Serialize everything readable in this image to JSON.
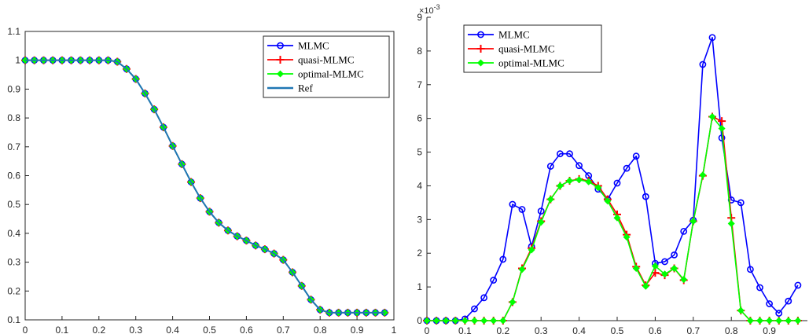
{
  "chart_data": [
    {
      "type": "line",
      "xlim": [
        0,
        1
      ],
      "ylim": [
        0.1,
        1.1
      ],
      "xticks": [
        "0",
        "0.1",
        "0.2",
        "0.3",
        "0.4",
        "0.5",
        "0.6",
        "0.7",
        "0.8",
        "0.9",
        "1"
      ],
      "yticks": [
        "0.1",
        "0.2",
        "0.3",
        "0.4",
        "0.5",
        "0.6",
        "0.7",
        "0.8",
        "0.9",
        "1",
        "1.1"
      ],
      "legend_position": "top-right",
      "grid": false,
      "x": [
        0,
        0.025,
        0.05,
        0.075,
        0.1,
        0.125,
        0.15,
        0.175,
        0.2,
        0.225,
        0.25,
        0.275,
        0.3,
        0.325,
        0.35,
        0.375,
        0.4,
        0.425,
        0.45,
        0.475,
        0.5,
        0.525,
        0.55,
        0.575,
        0.6,
        0.625,
        0.65,
        0.675,
        0.7,
        0.725,
        0.75,
        0.775,
        0.8,
        0.825,
        0.85,
        0.875,
        0.9,
        0.925,
        0.95,
        0.975
      ],
      "series": [
        {
          "name": "MLMC",
          "color": "#0000ff",
          "marker": "circle",
          "values": [
            1,
            1,
            1,
            1,
            1,
            1,
            1,
            1,
            1,
            1,
            0.995,
            0.97,
            0.935,
            0.885,
            0.83,
            0.768,
            0.703,
            0.64,
            0.578,
            0.522,
            0.475,
            0.437,
            0.41,
            0.39,
            0.375,
            0.358,
            0.345,
            0.33,
            0.308,
            0.265,
            0.218,
            0.17,
            0.135,
            0.125,
            0.125,
            0.125,
            0.125,
            0.125,
            0.125,
            0.125
          ]
        },
        {
          "name": "quasi-MLMC",
          "color": "#ff0000",
          "marker": "plus",
          "values": [
            1,
            1,
            1,
            1,
            1,
            1,
            1,
            1,
            1,
            1,
            0.995,
            0.97,
            0.935,
            0.885,
            0.83,
            0.768,
            0.703,
            0.64,
            0.578,
            0.522,
            0.475,
            0.437,
            0.41,
            0.39,
            0.375,
            0.358,
            0.345,
            0.33,
            0.308,
            0.265,
            0.218,
            0.17,
            0.135,
            0.125,
            0.125,
            0.125,
            0.125,
            0.125,
            0.125,
            0.125
          ]
        },
        {
          "name": "optimal-MLMC",
          "color": "#00ff00",
          "marker": "diamond",
          "values": [
            1,
            1,
            1,
            1,
            1,
            1,
            1,
            1,
            1,
            1,
            0.995,
            0.97,
            0.935,
            0.885,
            0.83,
            0.768,
            0.703,
            0.64,
            0.578,
            0.522,
            0.475,
            0.437,
            0.41,
            0.39,
            0.375,
            0.358,
            0.345,
            0.33,
            0.308,
            0.265,
            0.218,
            0.17,
            0.135,
            0.125,
            0.125,
            0.125,
            0.125,
            0.125,
            0.125,
            0.125
          ]
        },
        {
          "name": "Ref",
          "color": "#1f77b4",
          "marker": "none",
          "values": [
            1,
            1,
            1,
            1,
            1,
            1,
            1,
            1,
            1,
            1,
            0.995,
            0.97,
            0.935,
            0.885,
            0.83,
            0.768,
            0.703,
            0.64,
            0.578,
            0.522,
            0.475,
            0.437,
            0.41,
            0.39,
            0.375,
            0.358,
            0.345,
            0.33,
            0.308,
            0.265,
            0.218,
            0.17,
            0.135,
            0.125,
            0.125,
            0.125,
            0.125,
            0.125,
            0.125,
            0.125
          ]
        }
      ]
    },
    {
      "type": "line",
      "xlim": [
        0,
        1
      ],
      "ylim": [
        0,
        9
      ],
      "y_exponent": "-3",
      "xticks": [
        "0",
        "0.1",
        "0.2",
        "0.3",
        "0.4",
        "0.5",
        "0.6",
        "0.7",
        "0.8",
        "0.9"
      ],
      "yticks": [
        "0",
        "1",
        "2",
        "3",
        "4",
        "5",
        "6",
        "7",
        "8",
        "9"
      ],
      "legend_position": "top-left",
      "grid": false,
      "x": [
        0,
        0.025,
        0.05,
        0.075,
        0.1,
        0.125,
        0.15,
        0.175,
        0.2,
        0.225,
        0.25,
        0.275,
        0.3,
        0.325,
        0.35,
        0.375,
        0.4,
        0.425,
        0.45,
        0.475,
        0.5,
        0.525,
        0.55,
        0.575,
        0.6,
        0.625,
        0.65,
        0.675,
        0.7,
        0.725,
        0.75,
        0.775,
        0.8,
        0.825,
        0.85,
        0.875,
        0.9,
        0.925,
        0.95,
        0.975
      ],
      "series": [
        {
          "name": "MLMC",
          "color": "#0000ff",
          "marker": "circle",
          "values": [
            0,
            0,
            0,
            0,
            0.05,
            0.35,
            0.68,
            1.2,
            1.82,
            3.45,
            3.3,
            2.2,
            3.25,
            4.58,
            4.95,
            4.95,
            4.6,
            4.3,
            3.9,
            3.6,
            4.08,
            4.52,
            4.88,
            3.68,
            1.7,
            1.75,
            1.95,
            2.65,
            2.98,
            7.6,
            8.4,
            5.42,
            3.58,
            3.5,
            1.52,
            0.98,
            0.5,
            0.22,
            0.58,
            1.05
          ]
        },
        {
          "name": "quasi-MLMC",
          "color": "#ff0000",
          "marker": "plus",
          "values": [
            0,
            0,
            0,
            0,
            0,
            0,
            0,
            0,
            0,
            0.55,
            1.55,
            2.15,
            2.95,
            3.6,
            4.0,
            4.15,
            4.2,
            4.15,
            4.0,
            3.6,
            3.15,
            2.55,
            1.6,
            1.05,
            1.42,
            1.35,
            1.55,
            1.2,
            2.95,
            4.3,
            6.05,
            5.92,
            3.05,
            0.3,
            0,
            0,
            0,
            0,
            0,
            0
          ]
        },
        {
          "name": "optimal-MLMC",
          "color": "#00ff00",
          "marker": "diamond",
          "values": [
            0,
            0,
            0,
            0,
            0,
            0,
            0,
            0,
            0,
            0.55,
            1.52,
            2.1,
            2.92,
            3.6,
            4.0,
            4.15,
            4.18,
            4.12,
            3.95,
            3.55,
            3.05,
            2.48,
            1.55,
            1.02,
            1.62,
            1.38,
            1.55,
            1.22,
            2.95,
            4.32,
            6.05,
            5.7,
            2.88,
            0.3,
            0,
            0,
            0,
            0,
            0,
            0
          ]
        }
      ]
    }
  ]
}
